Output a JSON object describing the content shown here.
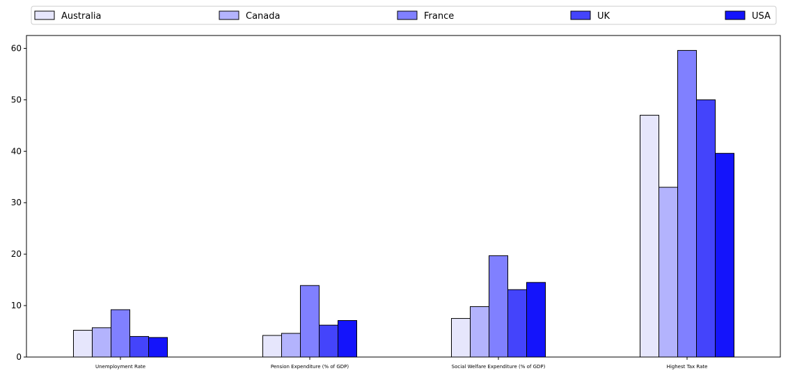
{
  "chart_data": {
    "type": "bar",
    "title": "",
    "xlabel": "",
    "ylabel": "",
    "categories": [
      "Unemployment Rate",
      "Pension Expenditure (% of GDP)",
      "Social Welfare Expenditure (% of GDP)",
      "Highest Tax Rate"
    ],
    "series": [
      {
        "name": "Australia",
        "color": "#e6e6fc",
        "values": [
          5.2,
          4.2,
          7.5,
          47.0
        ]
      },
      {
        "name": "Canada",
        "color": "#b3b3fd",
        "values": [
          5.7,
          4.6,
          9.8,
          33.0
        ]
      },
      {
        "name": "France",
        "color": "#8080ff",
        "values": [
          9.2,
          13.9,
          19.7,
          59.6
        ]
      },
      {
        "name": "UK",
        "color": "#4444fb",
        "values": [
          4.0,
          6.2,
          13.1,
          50.0
        ]
      },
      {
        "name": "USA",
        "color": "#1414fb",
        "values": [
          3.8,
          7.1,
          14.5,
          39.6
        ]
      }
    ],
    "ylim": [
      0,
      62.5
    ],
    "yticks": [
      0,
      10,
      20,
      30,
      40,
      50,
      60
    ],
    "grid": false,
    "legend_placement": "top, above plot, single row",
    "bar_edge_color": "#000000"
  }
}
